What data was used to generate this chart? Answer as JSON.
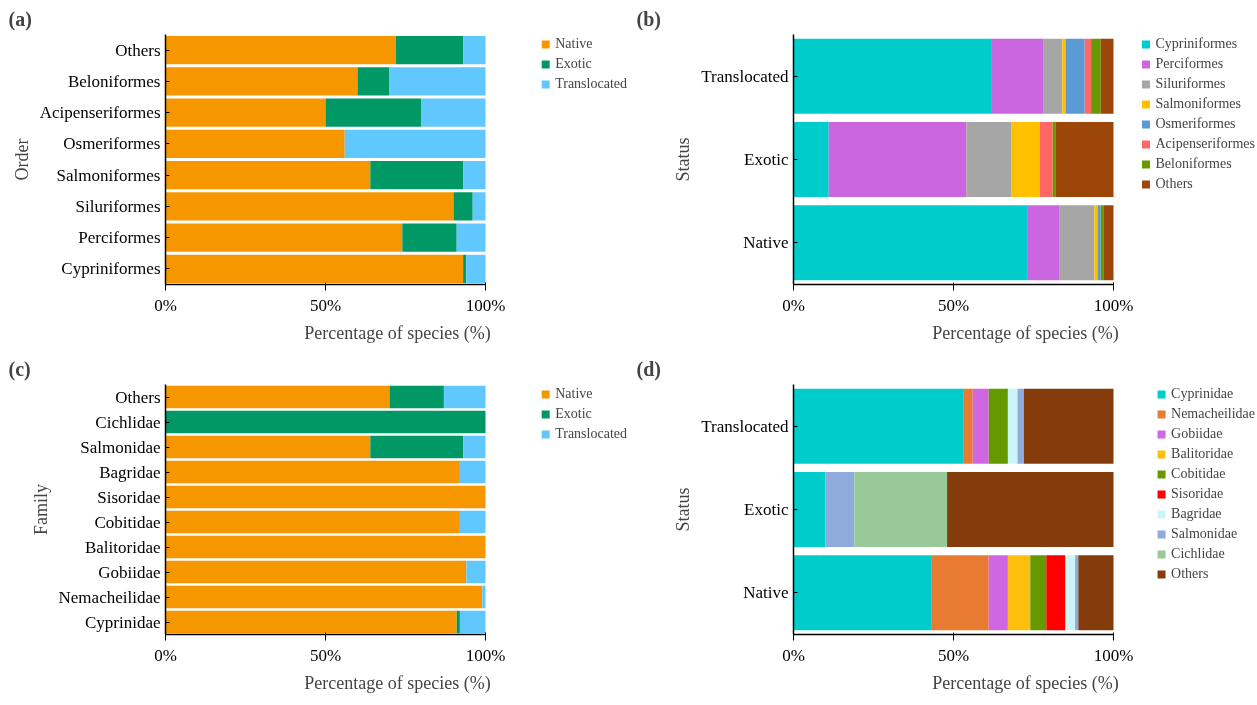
{
  "chart_data": [
    {
      "type": "bar",
      "title": "(a)",
      "orientation": "horizontal",
      "stacked": true,
      "ylabel": "Order",
      "xlabel": "Percentage of species (%)",
      "categories": [
        "Others",
        "Beloniformes",
        "Acipenseriformes",
        "Osmeriformes",
        "Salmoniformes",
        "Siluriformes",
        "Perciformes",
        "Cypriniformes"
      ],
      "series": [
        {
          "name": "Native",
          "color": "#f79700",
          "values": [
            72,
            60,
            50,
            56,
            64,
            90,
            74,
            93
          ]
        },
        {
          "name": "Exotic",
          "color": "#009966",
          "values": [
            21,
            10,
            30,
            0,
            29,
            6,
            17,
            1
          ]
        },
        {
          "name": "Translocated",
          "color": "#61c7ff",
          "values": [
            7,
            30,
            20,
            44,
            7,
            4,
            9,
            6
          ]
        }
      ],
      "xlim": [
        0,
        100
      ],
      "xticks": [
        {
          "value": 0,
          "label": "0%"
        },
        {
          "value": 50,
          "label": "50%"
        },
        {
          "value": 100,
          "label": "100%"
        }
      ],
      "grid": false,
      "legend": "right"
    },
    {
      "type": "bar",
      "title": "(b)",
      "orientation": "horizontal",
      "stacked": true,
      "ylabel": "Status",
      "xlabel": "Percentage of species (%)",
      "categories": [
        "Translocated",
        "Exotic",
        "Native"
      ],
      "series": [
        {
          "name": "Cypriniformes",
          "color": "#00cccc",
          "values": [
            62,
            11,
            73
          ]
        },
        {
          "name": "Perciformes",
          "color": "#cc66e0",
          "values": [
            16,
            43,
            10
          ]
        },
        {
          "name": "Siluriformes",
          "color": "#a6a6a6",
          "values": [
            6,
            14,
            11
          ]
        },
        {
          "name": "Salmoniformes",
          "color": "#ffc000",
          "values": [
            1,
            9,
            1
          ]
        },
        {
          "name": "Osmeriformes",
          "color": "#5b9bd5",
          "values": [
            6,
            0,
            1
          ]
        },
        {
          "name": "Acipenseriformes",
          "color": "#ff6666",
          "values": [
            2,
            4,
            0
          ]
        },
        {
          "name": "Beloniformes",
          "color": "#669900",
          "values": [
            3,
            1,
            1
          ]
        },
        {
          "name": "Others",
          "color": "#9c4609",
          "values": [
            4,
            18,
            3
          ]
        }
      ],
      "xlim": [
        0,
        100
      ],
      "xticks": [
        {
          "value": 0,
          "label": "0%"
        },
        {
          "value": 50,
          "label": "50%"
        },
        {
          "value": 100,
          "label": "100%"
        }
      ],
      "grid": false,
      "legend": "right"
    },
    {
      "type": "bar",
      "title": "(c)",
      "orientation": "horizontal",
      "stacked": true,
      "ylabel": "Family",
      "xlabel": "Percentage of species (%)",
      "categories": [
        "Others",
        "Cichlidae",
        "Salmonidae",
        "Bagridae",
        "Sisoridae",
        "Cobitidae",
        "Balitoridae",
        "Gobiidae",
        "Nemacheilidae",
        "Cyprinidae"
      ],
      "series": [
        {
          "name": "Native",
          "color": "#f79700",
          "values": [
            70,
            0,
            64,
            92,
            100,
            92,
            100,
            94,
            99,
            91
          ]
        },
        {
          "name": "Exotic",
          "color": "#009966",
          "values": [
            17,
            100,
            29,
            0,
            0,
            0,
            0,
            0,
            0,
            1
          ]
        },
        {
          "name": "Translocated",
          "color": "#61c7ff",
          "values": [
            13,
            0,
            7,
            8,
            0,
            8,
            0,
            6,
            1,
            8
          ]
        }
      ],
      "xlim": [
        0,
        100
      ],
      "xticks": [
        {
          "value": 0,
          "label": "0%"
        },
        {
          "value": 50,
          "label": "50%"
        },
        {
          "value": 100,
          "label": "100%"
        }
      ],
      "grid": false,
      "legend": "right"
    },
    {
      "type": "bar",
      "title": "(d)",
      "orientation": "horizontal",
      "stacked": true,
      "ylabel": "Status",
      "xlabel": "Percentage of species (%)",
      "categories": [
        "Translocated",
        "Exotic",
        "Native"
      ],
      "series": [
        {
          "name": "Cyprinidae",
          "color": "#00cccc",
          "values": [
            53,
            10,
            43
          ]
        },
        {
          "name": "Nemacheilidae",
          "color": "#e87a32",
          "values": [
            3,
            0,
            18
          ]
        },
        {
          "name": "Gobiidae",
          "color": "#d166e2",
          "values": [
            5,
            0,
            6
          ]
        },
        {
          "name": "Balitoridae",
          "color": "#ffbf0f",
          "values": [
            0,
            0,
            7
          ]
        },
        {
          "name": "Cobitidae",
          "color": "#669900",
          "values": [
            6,
            0,
            5
          ]
        },
        {
          "name": "Sisoridae",
          "color": "#ff0000",
          "values": [
            0,
            0,
            6
          ]
        },
        {
          "name": "Bagridae",
          "color": "#ccf5fa",
          "values": [
            3,
            0,
            3
          ]
        },
        {
          "name": "Salmonidae",
          "color": "#8faadc",
          "values": [
            2,
            9,
            1
          ]
        },
        {
          "name": "Cichlidae",
          "color": "#99c999",
          "values": [
            0,
            29,
            0
          ]
        },
        {
          "name": "Others",
          "color": "#843c0c",
          "values": [
            28,
            52,
            11
          ]
        }
      ],
      "xlim": [
        0,
        100
      ],
      "xticks": [
        {
          "value": 0,
          "label": "0%"
        },
        {
          "value": 50,
          "label": "50%"
        },
        {
          "value": 100,
          "label": "100%"
        }
      ],
      "grid": false,
      "legend": "right"
    }
  ]
}
